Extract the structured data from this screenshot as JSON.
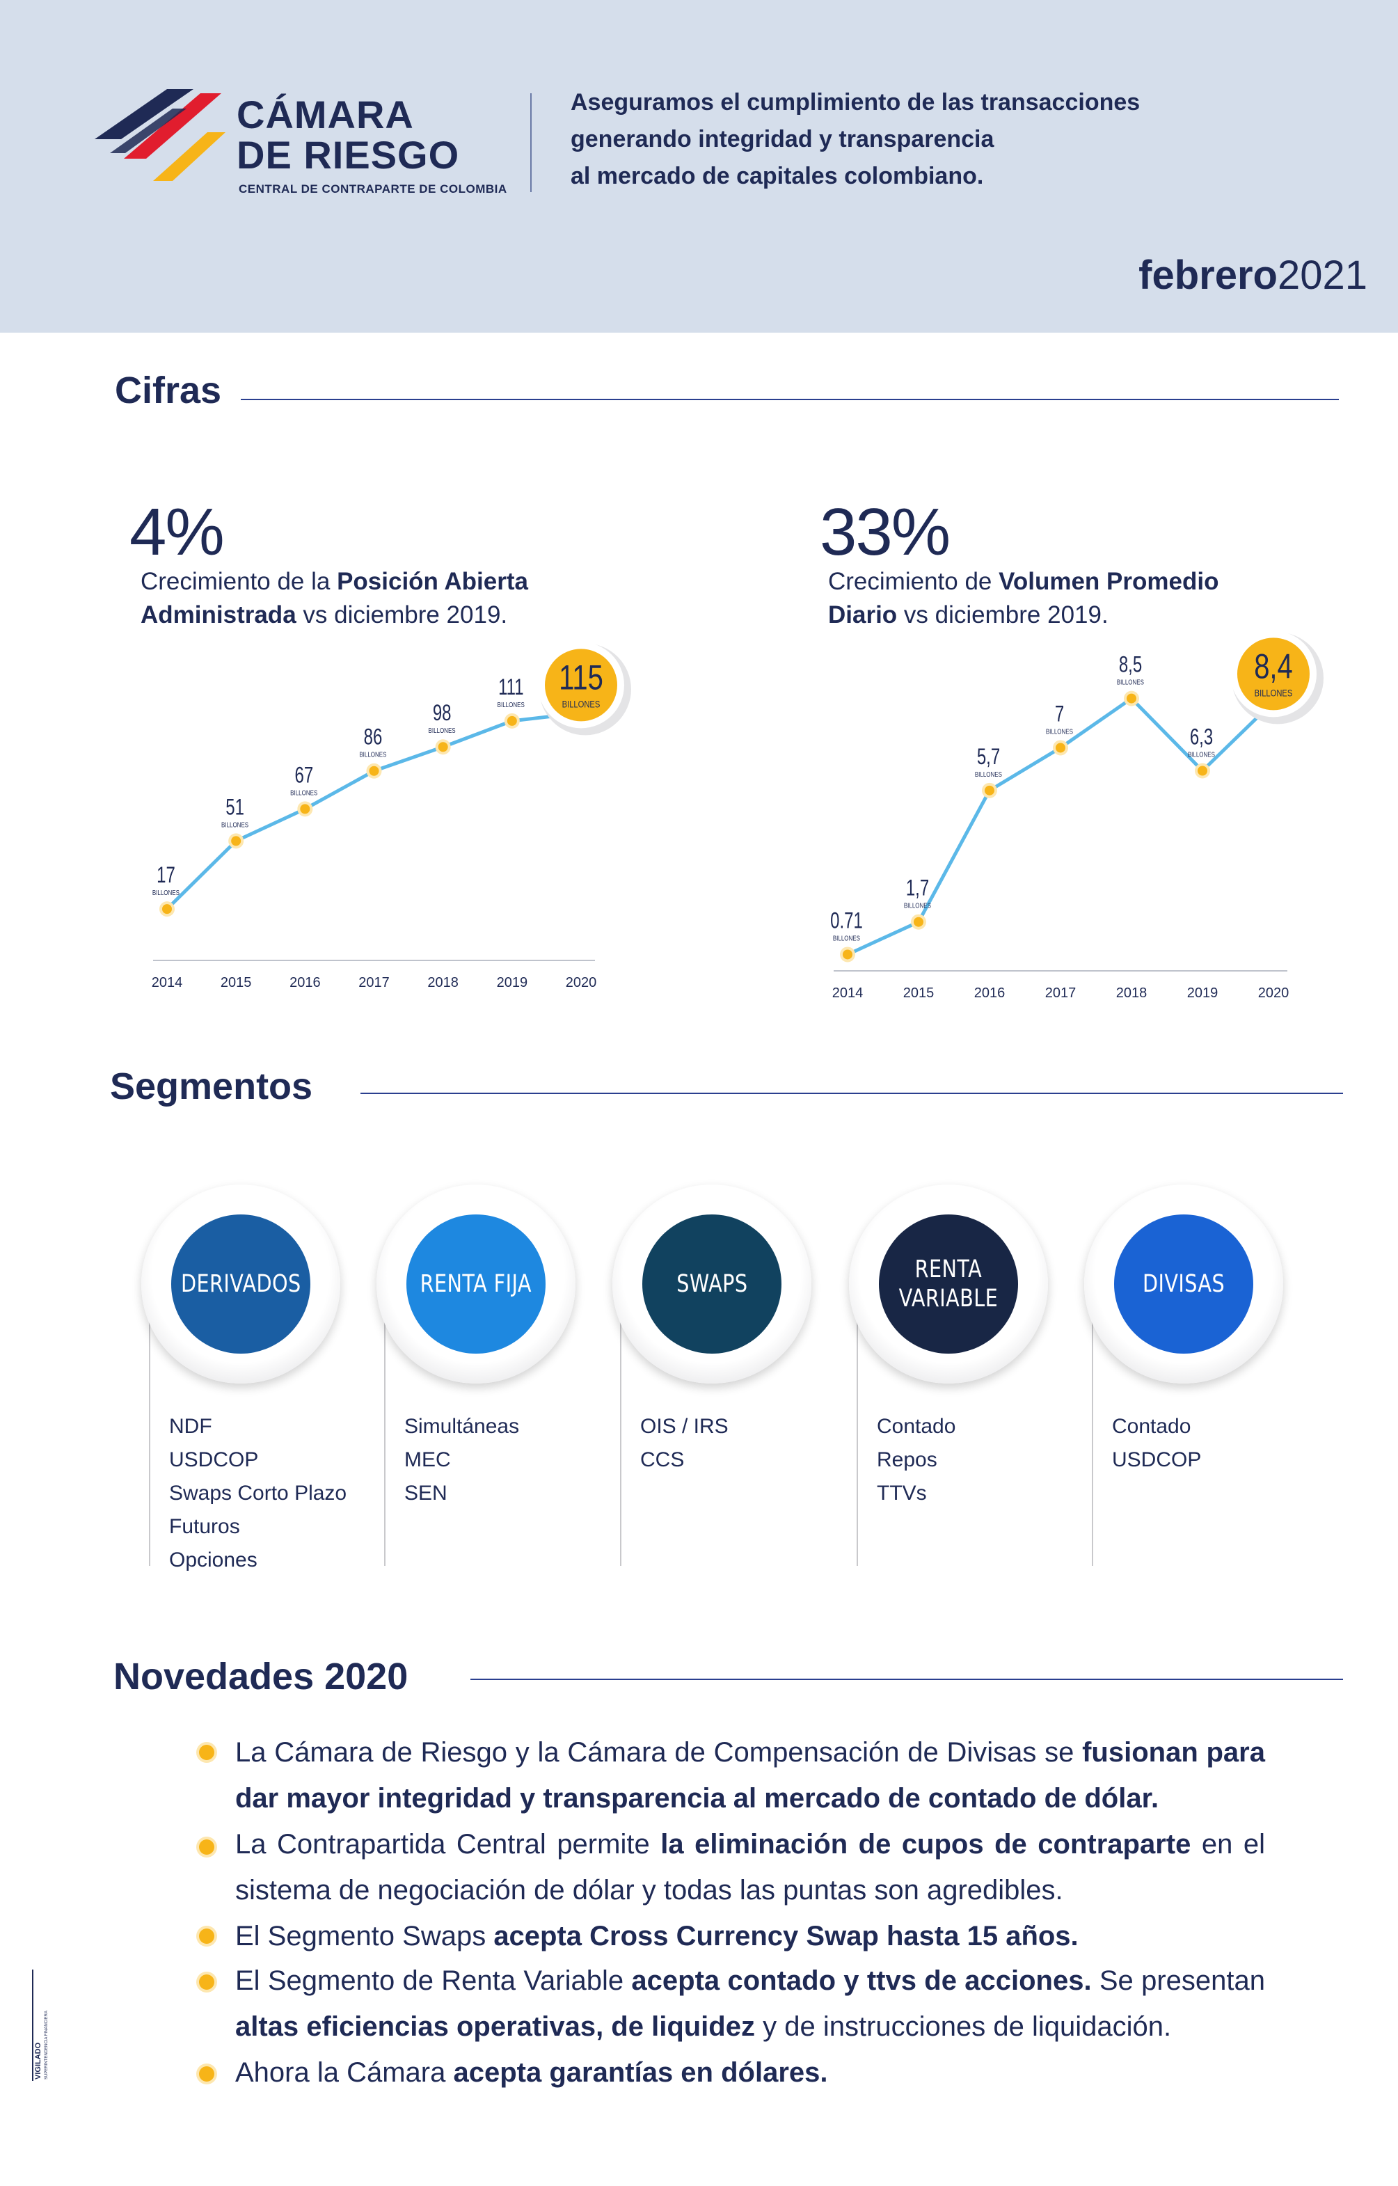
{
  "header": {
    "brand_line1": "CÁMARA",
    "brand_line2": "DE RIESGO",
    "brand_sub": "CENTRAL DE CONTRAPARTE DE COLOMBIA",
    "tagline": [
      "Aseguramos el cumplimiento de las transacciones",
      "generando integridad y transparencia",
      "al mercado de capitales colombiano."
    ],
    "date_month": "febrero",
    "date_year": "2021",
    "colors": {
      "background": "#d5deeb",
      "navy": "#1f2a55",
      "red": "#e11d2e",
      "yellow": "#f7b418"
    }
  },
  "cifras": {
    "title": "Cifras",
    "stat1": {
      "pct": "4%",
      "desc_pre": "Crecimiento de la ",
      "desc_bold": "Posición Abierta Administrada",
      "desc_post": " vs diciembre 2019."
    },
    "stat2": {
      "pct": "33%",
      "desc_pre": "Crecimiento de ",
      "desc_bold": "Volumen Promedio Diario",
      "desc_post": " vs diciembre 2019."
    }
  },
  "chart_data": [
    {
      "type": "line",
      "x": [
        "2014",
        "2015",
        "2016",
        "2017",
        "2018",
        "2019",
        "2020"
      ],
      "values": [
        17,
        51,
        67,
        86,
        98,
        111,
        115
      ],
      "labels": [
        "17",
        "51",
        "67",
        "86",
        "98",
        "111",
        "115"
      ],
      "unit": "BILLONES",
      "ylim": [
        0,
        120
      ],
      "highlight_last": true,
      "line_color": "#5bb8e8",
      "point_color": "#f7b418"
    },
    {
      "type": "line",
      "x": [
        "2014",
        "2015",
        "2016",
        "2017",
        "2018",
        "2019",
        "2020"
      ],
      "values": [
        0.71,
        1.7,
        5.7,
        7,
        8.5,
        6.3,
        8.4
      ],
      "labels": [
        "0.71",
        "1,7",
        "5,7",
        "7",
        "8,5",
        "6,3",
        "8,4"
      ],
      "unit": "BILLONES",
      "ylim": [
        0,
        9
      ],
      "highlight_last": true,
      "line_color": "#5bb8e8",
      "point_color": "#f7b418"
    }
  ],
  "segmentos": {
    "title": "Segmentos",
    "items": [
      {
        "name": "DERIVADOS",
        "color": "#1a5ea3",
        "products": [
          "NDF",
          "USDCOP",
          "Swaps Corto Plazo",
          "Futuros",
          "Opciones"
        ]
      },
      {
        "name": "RENTA FIJA",
        "color": "#1e88e0",
        "products": [
          "Simultáneas",
          "MEC",
          "SEN"
        ]
      },
      {
        "name": "SWAPS",
        "color": "#11425f",
        "products": [
          "OIS / IRS",
          "CCS"
        ]
      },
      {
        "name": "RENTA\nVARIABLE",
        "color": "#182645",
        "products": [
          "Contado",
          "Repos",
          "TTVs"
        ]
      },
      {
        "name": "DIVISAS",
        "color": "#1a63d4",
        "products": [
          "Contado",
          "USDCOP"
        ]
      }
    ]
  },
  "novedades": {
    "title": "Novedades 2020",
    "items": [
      {
        "pre": "La Cámara de Riesgo y la Cámara de Compensación de Divisas se ",
        "bold": "fusionan para dar mayor integridad y transparencia al mercado de contado de dólar.",
        "post": ""
      },
      {
        "pre": "La Contrapartida Central permite ",
        "bold": "la eliminación de cupos de contraparte",
        "post": " en el sistema de negociación de dólar y todas las puntas son agredibles."
      },
      {
        "pre": "El Segmento Swaps ",
        "bold": "acepta Cross Currency Swap hasta 15 años.",
        "post": ""
      },
      {
        "pre": "El Segmento de Renta Variable ",
        "bold": "acepta contado y ttvs de acciones.",
        "post": " Se presentan ",
        "bold2": "altas eficiencias operativas, de liquidez",
        "post2": " y de instrucciones de liquidación."
      },
      {
        "pre": "Ahora la Cámara ",
        "bold": "acepta garantías en dólares.",
        "post": ""
      }
    ]
  },
  "vigilado": "VIGILADO SUPERINTENDENCIA FINANCIERA DE COLOMBIA"
}
